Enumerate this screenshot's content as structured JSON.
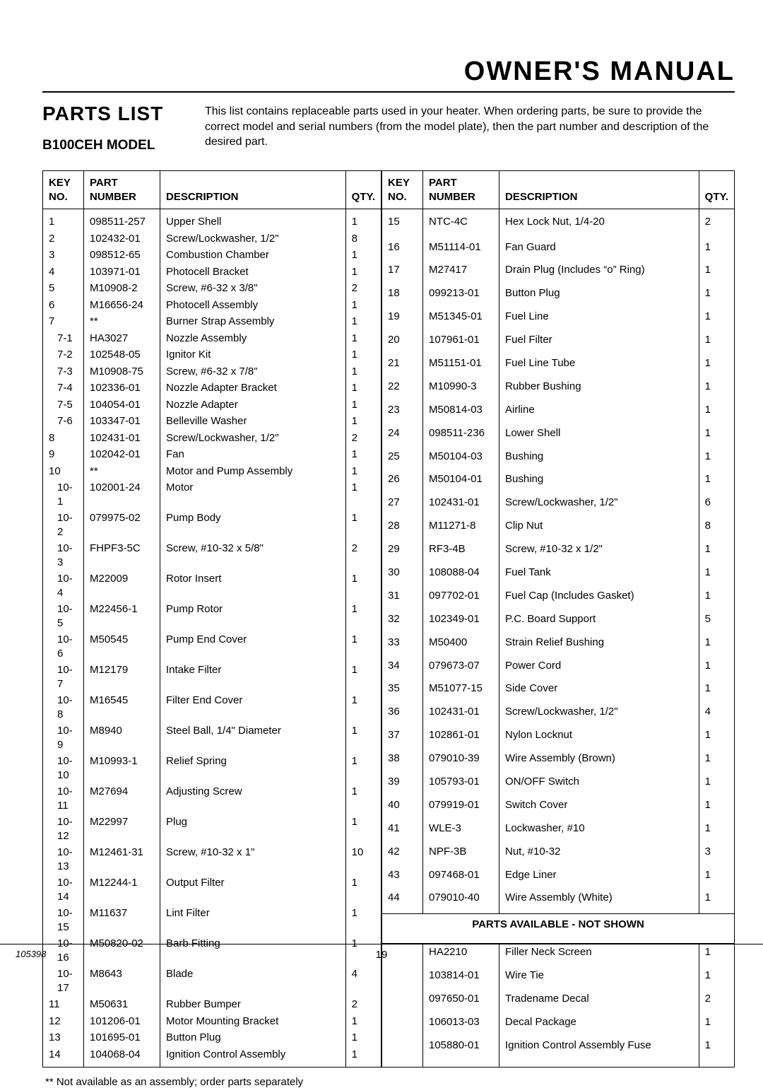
{
  "doc_title": "Owner's Manual",
  "section_title": "Parts List",
  "model": "B100CEH MODEL",
  "intro": "This list contains replaceable parts used in your heater. When ordering parts, be sure to provide the correct model and serial numbers (from the model plate), then the part number and description of the desired part.",
  "headers": {
    "key1": "KEY",
    "key2": "NO.",
    "part1": "PART",
    "part2": "NUMBER",
    "desc": "DESCRIPTION",
    "qty": "QTY."
  },
  "left_rows": [
    {
      "key": "1",
      "part": "098511-257",
      "desc": "Upper Shell",
      "qty": "1"
    },
    {
      "key": "2",
      "part": "102432-01",
      "desc": "Screw/Lockwasher, 1/2\"",
      "qty": "8"
    },
    {
      "key": "3",
      "part": "098512-65",
      "desc": "Combustion Chamber",
      "qty": "1"
    },
    {
      "key": "4",
      "part": "103971-01",
      "desc": "Photocell Bracket",
      "qty": "1"
    },
    {
      "key": "5",
      "part": "M10908-2",
      "desc": "Screw, #6-32 x 3/8\"",
      "qty": "2"
    },
    {
      "key": "6",
      "part": "M16656-24",
      "desc": "Photocell Assembly",
      "qty": "1"
    },
    {
      "key": "7",
      "part": "**",
      "desc": "Burner Strap Assembly",
      "qty": "1"
    },
    {
      "key": "7-1",
      "part": "HA3027",
      "desc": "Nozzle Assembly",
      "qty": "1",
      "indent": true
    },
    {
      "key": "7-2",
      "part": "102548-05",
      "desc": "Ignitor Kit",
      "qty": "1",
      "indent": true
    },
    {
      "key": "7-3",
      "part": "M10908-75",
      "desc": "Screw, #6-32 x 7/8\"",
      "qty": "1",
      "indent": true
    },
    {
      "key": "7-4",
      "part": "102336-01",
      "desc": "Nozzle Adapter Bracket",
      "qty": "1",
      "indent": true
    },
    {
      "key": "7-5",
      "part": "104054-01",
      "desc": "Nozzle Adapter",
      "qty": "1",
      "indent": true
    },
    {
      "key": "7-6",
      "part": "103347-01",
      "desc": "Belleville Washer",
      "qty": "1",
      "indent": true
    },
    {
      "key": "8",
      "part": "102431-01",
      "desc": "Screw/Lockwasher, 1/2\"",
      "qty": "2"
    },
    {
      "key": "9",
      "part": "102042-01",
      "desc": "Fan",
      "qty": "1"
    },
    {
      "key": "10",
      "part": "**",
      "desc": "Motor and Pump Assembly",
      "qty": "1"
    },
    {
      "key": "10-1",
      "part": "102001-24",
      "desc": "Motor",
      "qty": "1",
      "indent": true
    },
    {
      "key": "10-2",
      "part": "079975-02",
      "desc": "Pump Body",
      "qty": "1",
      "indent": true
    },
    {
      "key": "10-3",
      "part": "FHPF3-5C",
      "desc": "Screw, #10-32 x 5/8\"",
      "qty": "2",
      "indent": true
    },
    {
      "key": "10-4",
      "part": "M22009",
      "desc": "Rotor Insert",
      "qty": "1",
      "indent": true
    },
    {
      "key": "10-5",
      "part": "M22456-1",
      "desc": "Pump Rotor",
      "qty": "1",
      "indent": true
    },
    {
      "key": "10-6",
      "part": "M50545",
      "desc": "Pump End Cover",
      "qty": "1",
      "indent": true
    },
    {
      "key": "10-7",
      "part": "M12179",
      "desc": "Intake Filter",
      "qty": "1",
      "indent": true
    },
    {
      "key": "10-8",
      "part": "M16545",
      "desc": "Filter End Cover",
      "qty": "1",
      "indent": true
    },
    {
      "key": "10-9",
      "part": "M8940",
      "desc": "Steel Ball, 1/4\" Diameter",
      "qty": "1",
      "indent": true
    },
    {
      "key": "10-10",
      "part": "M10993-1",
      "desc": "Relief Spring",
      "qty": "1",
      "indent": true
    },
    {
      "key": "10-11",
      "part": "M27694",
      "desc": "Adjusting Screw",
      "qty": "1",
      "indent": true
    },
    {
      "key": "10-12",
      "part": "M22997",
      "desc": "Plug",
      "qty": "1",
      "indent": true
    },
    {
      "key": "10-13",
      "part": "M12461-31",
      "desc": "Screw, #10-32 x 1\"",
      "qty": "10",
      "indent": true
    },
    {
      "key": "10-14",
      "part": "M12244-1",
      "desc": "Output Filter",
      "qty": "1",
      "indent": true
    },
    {
      "key": "10-15",
      "part": "M11637",
      "desc": "Lint Filter",
      "qty": "1",
      "indent": true
    },
    {
      "key": "10-16",
      "part": "M50820-02",
      "desc": "Barb Fitting",
      "qty": "1",
      "indent": true
    },
    {
      "key": "10-17",
      "part": "M8643",
      "desc": "Blade",
      "qty": "4",
      "indent": true
    },
    {
      "key": "11",
      "part": "M50631",
      "desc": "Rubber Bumper",
      "qty": "2"
    },
    {
      "key": "12",
      "part": "101206-01",
      "desc": "Motor Mounting Bracket",
      "qty": "1"
    },
    {
      "key": "13",
      "part": "101695-01",
      "desc": "Button Plug",
      "qty": "1"
    },
    {
      "key": "14",
      "part": "104068-04",
      "desc": "Ignition Control Assembly",
      "qty": "1"
    }
  ],
  "right_rows": [
    {
      "key": "15",
      "part": "NTC-4C",
      "desc": "Hex Lock Nut, 1/4-20",
      "qty": "2"
    },
    {
      "key": "16",
      "part": "M51114-01",
      "desc": "Fan Guard",
      "qty": "1"
    },
    {
      "key": "17",
      "part": "M27417",
      "desc": "Drain Plug (Includes “o” Ring)",
      "qty": "1"
    },
    {
      "key": "18",
      "part": "099213-01",
      "desc": "Button Plug",
      "qty": "1"
    },
    {
      "key": "19",
      "part": "M51345-01",
      "desc": "Fuel Line",
      "qty": "1"
    },
    {
      "key": "20",
      "part": "107961-01",
      "desc": "Fuel Filter",
      "qty": "1"
    },
    {
      "key": "21",
      "part": "M51151-01",
      "desc": "Fuel Line Tube",
      "qty": "1"
    },
    {
      "key": "22",
      "part": "M10990-3",
      "desc": "Rubber Bushing",
      "qty": "1"
    },
    {
      "key": "23",
      "part": "M50814-03",
      "desc": "Airline",
      "qty": "1"
    },
    {
      "key": "24",
      "part": "098511-236",
      "desc": "Lower Shell",
      "qty": "1"
    },
    {
      "key": "25",
      "part": "M50104-03",
      "desc": "Bushing",
      "qty": "1"
    },
    {
      "key": "26",
      "part": "M50104-01",
      "desc": "Bushing",
      "qty": "1"
    },
    {
      "key": "27",
      "part": "102431-01",
      "desc": "Screw/Lockwasher, 1/2\"",
      "qty": "6"
    },
    {
      "key": "28",
      "part": "M11271-8",
      "desc": "Clip Nut",
      "qty": "8"
    },
    {
      "key": "29",
      "part": "RF3-4B",
      "desc": "Screw, #10-32 x 1/2\"",
      "qty": "1"
    },
    {
      "key": "30",
      "part": "108088-04",
      "desc": "Fuel Tank",
      "qty": "1"
    },
    {
      "key": "31",
      "part": "097702-01",
      "desc": "Fuel Cap (Includes Gasket)",
      "qty": "1"
    },
    {
      "key": "32",
      "part": "102349-01",
      "desc": "P.C. Board Support",
      "qty": "5"
    },
    {
      "key": "33",
      "part": "M50400",
      "desc": "Strain Relief Bushing",
      "qty": "1"
    },
    {
      "key": "34",
      "part": "079673-07",
      "desc": "Power Cord",
      "qty": "1"
    },
    {
      "key": "35",
      "part": "M51077-15",
      "desc": "Side Cover",
      "qty": "1"
    },
    {
      "key": "36",
      "part": "102431-01",
      "desc": "Screw/Lockwasher, 1/2\"",
      "qty": "4"
    },
    {
      "key": "37",
      "part": "102861-01",
      "desc": "Nylon Locknut",
      "qty": "1"
    },
    {
      "key": "38",
      "part": "079010-39",
      "desc": "Wire Assembly (Brown)",
      "qty": "1"
    },
    {
      "key": "39",
      "part": "105793-01",
      "desc": "ON/OFF Switch",
      "qty": "1"
    },
    {
      "key": "40",
      "part": "079919-01",
      "desc": "Switch Cover",
      "qty": "1"
    },
    {
      "key": "41",
      "part": "WLE-3",
      "desc": "Lockwasher, #10",
      "qty": "1"
    },
    {
      "key": "42",
      "part": "NPF-3B",
      "desc": "Nut, #10-32",
      "qty": "3"
    },
    {
      "key": "43",
      "part": "097468-01",
      "desc": "Edge Liner",
      "qty": "1"
    },
    {
      "key": "44",
      "part": "079010-40",
      "desc": "Wire Assembly (White)",
      "qty": "1"
    }
  ],
  "divider_label": "PARTS AVAILABLE - NOT SHOWN",
  "right_extra_rows": [
    {
      "key": "",
      "part": "HA2210",
      "desc": "Filler Neck Screen",
      "qty": "1"
    },
    {
      "key": "",
      "part": "103814-01",
      "desc": "Wire Tie",
      "qty": "1"
    },
    {
      "key": "",
      "part": "097650-01",
      "desc": "Tradename Decal",
      "qty": "2"
    },
    {
      "key": "",
      "part": "106013-03",
      "desc": "Decal Package",
      "qty": "1"
    },
    {
      "key": "",
      "part": "105880-01",
      "desc": "Ignition Control Assembly Fuse",
      "qty": "1"
    }
  ],
  "footnote": "**   Not available as an assembly; order parts  separately",
  "footer": {
    "docno": "105398",
    "pageno": "19"
  }
}
